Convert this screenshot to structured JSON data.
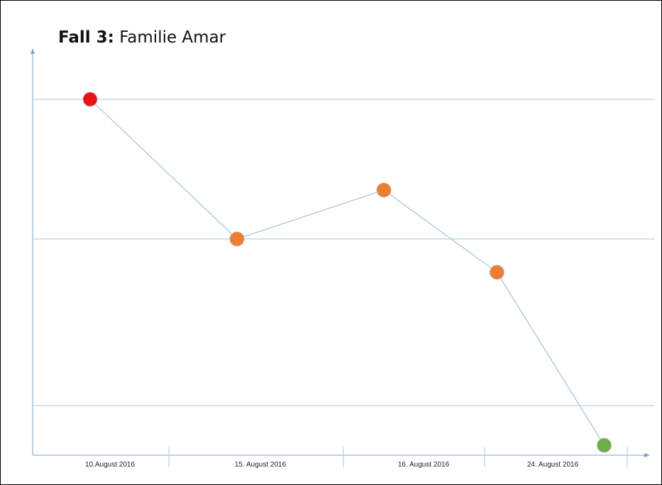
{
  "title": {
    "bold": "Fall 3:",
    "rest": "Familie Amar"
  },
  "chart_data": {
    "type": "line",
    "categories": [
      "10.August 2016",
      "15. August 2016",
      "16. August 2016",
      "24. August 2016"
    ],
    "ylim": [
      0,
      3
    ],
    "y_gridlines": [
      1,
      2,
      3
    ],
    "points": [
      {
        "x": 0.0,
        "y": 3.0,
        "color": "#e81414"
      },
      {
        "x": 1.0,
        "y": 2.0,
        "color": "#ed7d31"
      },
      {
        "x": 2.0,
        "y": 2.35,
        "color": "#ed7d31"
      },
      {
        "x": 2.77,
        "y": 1.8,
        "color": "#ed7d31"
      },
      {
        "x": 3.5,
        "y": 0.2,
        "color": "#70ad47"
      }
    ],
    "line_color": "#a9c6df",
    "grid": true,
    "colors": {
      "axis": "#7aa3c8",
      "grid": "#a9c6df"
    }
  }
}
